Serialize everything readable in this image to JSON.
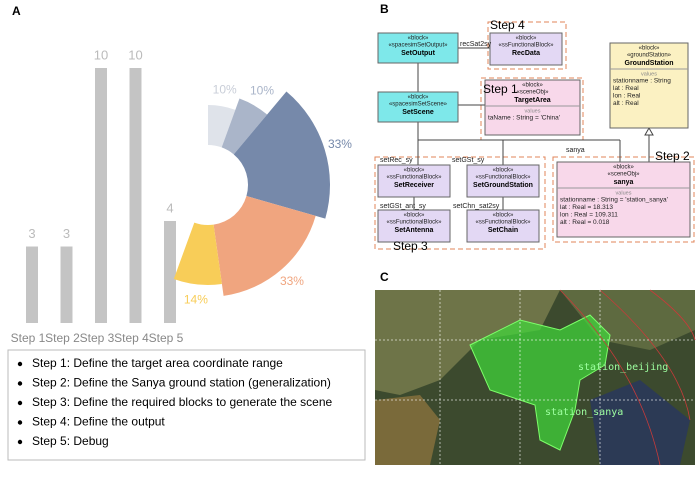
{
  "panel_labels": [
    "A",
    "B",
    "C"
  ],
  "chart_data": [
    {
      "type": "bar",
      "categories": [
        "Step 1",
        "Step 2",
        "Step 3",
        "Step 4",
        "Step 5"
      ],
      "values": [
        3,
        3,
        10,
        10,
        4
      ],
      "color": "#c4c4c4"
    },
    {
      "type": "pie",
      "values": [
        10,
        10,
        33,
        33,
        14
      ],
      "value_labels": [
        "10%",
        "10%",
        "33%",
        "33%",
        "14%"
      ],
      "colors": [
        "#dfe3ea",
        "#aab5c9",
        "#7689aa",
        "#f0a57f",
        "#f8cd58"
      ]
    }
  ],
  "steps_list": [
    "Step 1: Define the target area coordinate range",
    "Step 2: Define the Sanya ground station (generalization)",
    "Step 3: Define the required blocks to generate the scene",
    "Step 4: Define the output",
    "Step 5: Debug"
  ],
  "diagram": {
    "nodes": [
      {
        "stereotypes": [
          "«block»",
          "«spacesimSetOutput»"
        ],
        "name": "SetOutput"
      },
      {
        "stereotypes": [
          "«block»",
          "«ssFunctionalBlock»"
        ],
        "name": "RecData"
      },
      {
        "stereotypes": [
          "«block»",
          "«sceneObj»"
        ],
        "name": "TargetArea",
        "section": "values",
        "attributes": [
          "taName : String = 'China'"
        ]
      },
      {
        "stereotypes": [
          "«block»",
          "«groundStation»"
        ],
        "name": "GroundStation",
        "section": "values",
        "attributes": [
          "stationname : String",
          "lat : Real",
          "lon : Real",
          "alt : Real"
        ]
      },
      {
        "stereotypes": [
          "«block»",
          "«spacesimSetScene»"
        ],
        "name": "SetScene"
      },
      {
        "stereotypes": [
          "«block»",
          "«ssFunctionalBlock»"
        ],
        "name": "SetReceiver"
      },
      {
        "stereotypes": [
          "«block»",
          "«ssFunctionalBlock»"
        ],
        "name": "SetGroundStation"
      },
      {
        "stereotypes": [
          "«block»",
          "«sceneObj»"
        ],
        "name": "sanya",
        "section": "values",
        "attributes": [
          "stationname : String = 'station_sanya'",
          "lat : Real = 18.313",
          "lon : Real = 109.311",
          "alt : Real = 0.018"
        ]
      },
      {
        "stereotypes": [
          "«block»",
          "«ssFunctionalBlock»"
        ],
        "name": "SetAntenna"
      },
      {
        "stereotypes": [
          "«block»",
          "«ssFunctionalBlock»"
        ],
        "name": "SetChain"
      }
    ],
    "edge_labels": [
      "recSat2sy",
      "setRec_sy",
      "setGSt_sy",
      "setGSt_ant_sy",
      "setChn_sat2sy",
      "sanya"
    ],
    "step_labels": [
      "Step 4",
      "Step 1",
      "Step 2",
      "Step 3"
    ]
  },
  "map": {
    "labels": [
      "station_beijing",
      "station_sanya"
    ]
  }
}
